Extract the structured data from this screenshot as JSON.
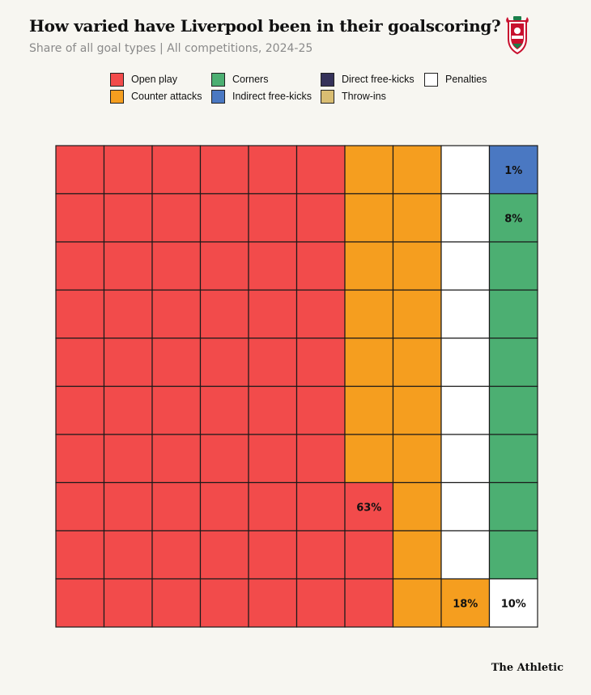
{
  "header": {
    "title": "How varied have Liverpool been in their goalscoring?",
    "subtitle": "Share of all goal types | All competitions, 2024-25"
  },
  "crest": {
    "icon": "liverpool-crest-icon"
  },
  "legend": [
    {
      "label": "Open play",
      "color": "#f24b4b"
    },
    {
      "label": "Corners",
      "color": "#4caf72"
    },
    {
      "label": "Direct free-kicks",
      "color": "#35325a"
    },
    {
      "label": "Penalties",
      "color": "#ffffff"
    },
    {
      "label": "Counter attacks",
      "color": "#f59e1f"
    },
    {
      "label": "Indirect free-kicks",
      "color": "#4a78c2"
    },
    {
      "label": "Throw-ins",
      "color": "#d9bd72"
    }
  ],
  "chart_data": {
    "type": "waffle",
    "title": "How varied have Liverpool been in their goalscoring?",
    "subtitle": "Share of all goal types | All competitions, 2024-25",
    "grid": {
      "rows": 10,
      "cols": 10
    },
    "categories": [
      "Open play",
      "Counter attacks",
      "Corners",
      "Direct free-kicks",
      "Indirect free-kicks",
      "Penalties",
      "Throw-ins"
    ],
    "values": [
      63,
      18,
      8,
      0,
      1,
      10,
      0
    ],
    "labels": [
      {
        "category": "Open play",
        "text": "63%"
      },
      {
        "category": "Counter attacks",
        "text": "18%"
      },
      {
        "category": "Penalties",
        "text": "10%"
      },
      {
        "category": "Corners",
        "text": "8%"
      },
      {
        "category": "Indirect free-kicks",
        "text": "1%"
      }
    ]
  },
  "footer": {
    "source": "The Athletic"
  }
}
